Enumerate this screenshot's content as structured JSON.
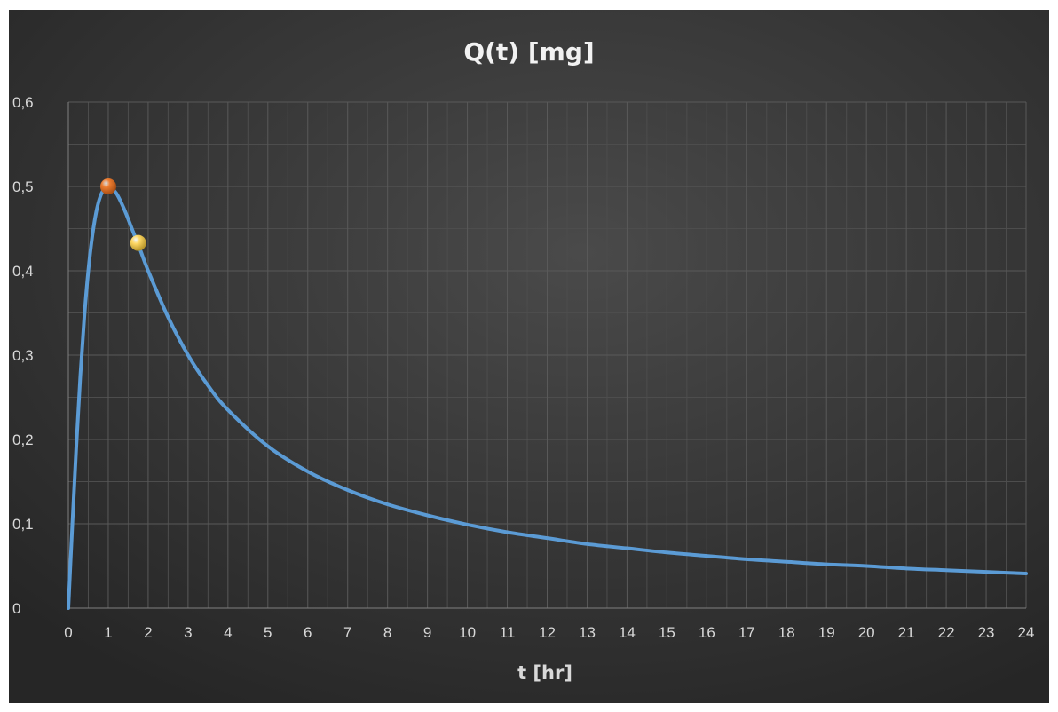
{
  "chart_data": {
    "type": "line",
    "title": "Q(t) [mg]",
    "xlabel": "t [hr]",
    "ylabel": "",
    "xlim": [
      0,
      24
    ],
    "ylim": [
      0,
      0.6
    ],
    "x_ticks": [
      "0",
      "1",
      "2",
      "3",
      "4",
      "5",
      "6",
      "7",
      "8",
      "9",
      "10",
      "11",
      "12",
      "13",
      "14",
      "15",
      "16",
      "17",
      "18",
      "19",
      "20",
      "21",
      "22",
      "23",
      "24"
    ],
    "y_ticks": [
      "0",
      "0,1",
      "0,2",
      "0,3",
      "0,4",
      "0,5",
      "0,6"
    ],
    "grid": true,
    "legend": "none",
    "series": [
      {
        "color": "#5b9bd5",
        "x": [
          0,
          0.1,
          0.2,
          0.3,
          0.4,
          0.5,
          0.6,
          0.7,
          0.8,
          0.9,
          1,
          1.2,
          1.4,
          1.6,
          1.8,
          2,
          2.5,
          3,
          3.5,
          4,
          5,
          6,
          7,
          8,
          9,
          10,
          11,
          12,
          13,
          14,
          15,
          16,
          17,
          18,
          19,
          20,
          21,
          22,
          23,
          24
        ],
        "y": [
          0,
          0.099,
          0.192,
          0.275,
          0.345,
          0.4,
          0.441,
          0.47,
          0.488,
          0.497,
          0.5,
          0.492,
          0.473,
          0.449,
          0.425,
          0.4,
          0.345,
          0.3,
          0.264,
          0.235,
          0.192,
          0.162,
          0.14,
          0.123,
          0.11,
          0.099,
          0.09,
          0.083,
          0.076,
          0.071,
          0.066,
          0.062,
          0.058,
          0.055,
          0.052,
          0.05,
          0.047,
          0.045,
          0.043,
          0.041
        ]
      }
    ],
    "markers": [
      {
        "x": 1,
        "y": 0.5,
        "color": "#ed7d31"
      },
      {
        "x": 1.75,
        "y": 0.433,
        "color": "#ffd966"
      }
    ],
    "colors": {
      "background": "#404040",
      "background_dark": "#262626",
      "grid": "#595959",
      "text": "#d9d9d9"
    }
  }
}
